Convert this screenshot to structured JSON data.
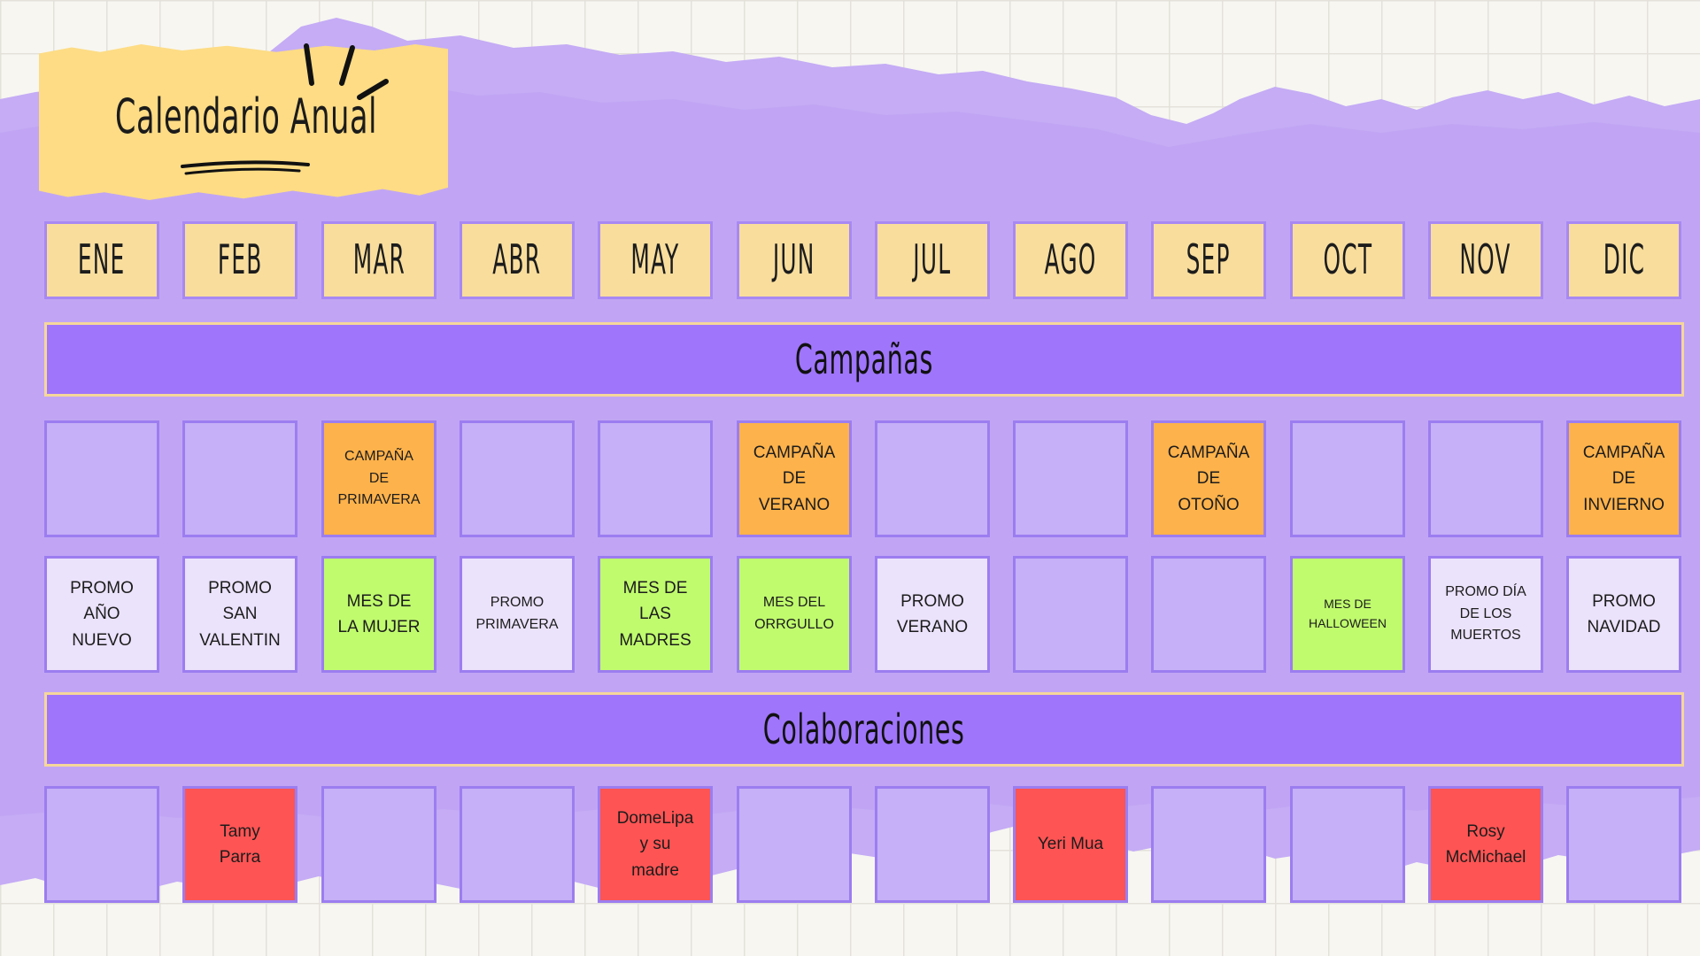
{
  "title": "Calendario Anual",
  "months": [
    "ENE",
    "FEB",
    "MAR",
    "ABR",
    "MAY",
    "JUN",
    "JUL",
    "AGO",
    "SEP",
    "OCT",
    "NOV",
    "DIC"
  ],
  "sections": {
    "campaigns": "Campañas",
    "collaborations": "Colaboraciones"
  },
  "campaigns": [
    "",
    "",
    "CAMPAÑA\nDE\nPRIMAVERA",
    "",
    "",
    "CAMPAÑA\nDE\nVERANO",
    "",
    "",
    "CAMPAÑA\nDE\nOTOÑO",
    "",
    "",
    "CAMPAÑA\nDE\nINVIERNO"
  ],
  "promos": [
    "PROMO\nAÑO\nNUEVO",
    "PROMO\nSAN\nVALENTIN",
    "MES DE\nLA MUJER",
    "PROMO\nPRIMAVERA",
    "MES DE\nLAS\nMADRES",
    "MES DEL\nORRGULLO",
    "PROMO\nVERANO",
    "",
    "",
    "MES DE\nHALLOWEEN",
    "PROMO DÍA\nDE LOS\nMUERTOS",
    "PROMO\nNAVIDAD"
  ],
  "collaborations": [
    "",
    "Tamy\nParra",
    "",
    "",
    "DomeLipa\ny su\nmadre",
    "",
    "",
    "Yeri Mua",
    "",
    "",
    "Rosy\nMcMichael",
    ""
  ],
  "colors": {
    "background": "#f7f6f1",
    "purple_wash": "#c5acf5",
    "month_box": "#f8dd9d",
    "banner": "#9f75fb",
    "campaign": "#fdb24b",
    "theme_month": "#c0fb6e",
    "promo": "#ebe2fb",
    "collaboration": "#ff5454",
    "title_note": "#fddc85"
  }
}
